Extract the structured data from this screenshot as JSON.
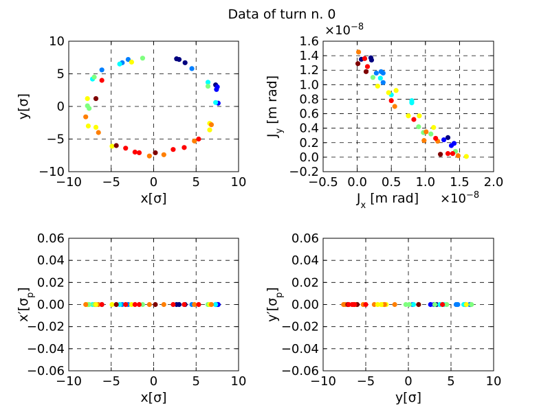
{
  "figure": {
    "title": "Data of turn n.  0"
  },
  "colormap": [
    "#00007f",
    "#0000ff",
    "#007fff",
    "#00ffff",
    "#7fff7f",
    "#ffff00",
    "#ff7f00",
    "#ff0000",
    "#7f0000"
  ],
  "chart_data": [
    {
      "type": "scatter",
      "xlabel": "x[σ]",
      "ylabel": "y[σ]",
      "xlim": [
        -10,
        10
      ],
      "ylim": [
        -10,
        10
      ],
      "xticks": [
        -10,
        -5,
        0,
        5,
        10
      ],
      "yticks": [
        -10,
        -5,
        0,
        5,
        10
      ],
      "grid": true,
      "points": [
        [
          2.7,
          7.3,
          0.02
        ],
        [
          3.0,
          7.2,
          0.06
        ],
        [
          3.7,
          6.7,
          0.04
        ],
        [
          7.3,
          3.3,
          0.03
        ],
        [
          7.4,
          2.6,
          0.08
        ],
        [
          7.6,
          0.5,
          0.1
        ],
        [
          7.5,
          3.0,
          0.14
        ],
        [
          4.5,
          5.8,
          0.22
        ],
        [
          -3.7,
          6.7,
          0.26
        ],
        [
          -6.1,
          5.6,
          0.2
        ],
        [
          -3.0,
          7.2,
          0.3
        ],
        [
          -4.0,
          6.5,
          0.34
        ],
        [
          -7.2,
          4.2,
          0.38
        ],
        [
          7.3,
          0.6,
          0.4
        ],
        [
          6.4,
          3.7,
          0.42
        ],
        [
          -7.8,
          0.1,
          0.46
        ],
        [
          -7.0,
          4.5,
          0.5
        ],
        [
          6.4,
          3.1,
          0.52
        ],
        [
          -1.3,
          7.4,
          0.56
        ],
        [
          -7.8,
          1.2,
          0.58
        ],
        [
          -7.7,
          -3.0,
          0.62
        ],
        [
          6.6,
          -2.6,
          0.64
        ],
        [
          -2.6,
          6.8,
          0.6
        ],
        [
          -4.9,
          -6.1,
          0.66
        ],
        [
          -7.6,
          -0.3,
          0.54
        ],
        [
          -8.0,
          -1.6,
          0.7
        ],
        [
          -6.5,
          -4.0,
          0.72
        ],
        [
          6.6,
          -3.6,
          0.68
        ],
        [
          6.8,
          -2.8,
          0.76
        ],
        [
          -0.5,
          -7.6,
          0.74
        ],
        [
          1.2,
          -7.4,
          0.8
        ],
        [
          -3.3,
          -6.4,
          0.82
        ],
        [
          4.8,
          -5.3,
          0.78
        ],
        [
          5.3,
          -5.0,
          0.86
        ],
        [
          -6.1,
          4.0,
          0.84
        ],
        [
          -1.7,
          -7.1,
          0.88
        ],
        [
          2.3,
          -6.6,
          0.9
        ],
        [
          -4.4,
          -6.0,
          0.94
        ],
        [
          3.6,
          -6.3,
          0.92
        ],
        [
          0.2,
          -7.1,
          0.96
        ],
        [
          -6.8,
          1.2,
          0.98
        ],
        [
          -2.2,
          -7.0,
          0.89
        ],
        [
          -6.8,
          -3.2,
          0.65
        ]
      ]
    },
    {
      "type": "scatter",
      "xlabel": "J_x [m rad]",
      "ylabel": "J_y [m rad]",
      "x_multiplier": "×10^−8",
      "y_multiplier": "×10^−8",
      "xlim": [
        -0.5,
        2.0
      ],
      "ylim": [
        -0.2,
        1.6
      ],
      "xticks": [
        -0.5,
        0.0,
        0.5,
        1.0,
        1.5,
        2.0
      ],
      "yticks": [
        -0.2,
        0.0,
        0.2,
        0.4,
        0.6,
        0.8,
        1.0,
        1.2,
        1.4,
        1.6
      ],
      "grid": true,
      "points": [
        [
          0.2,
          1.37,
          0.02
        ],
        [
          0.21,
          1.34,
          0.06
        ],
        [
          0.06,
          1.35,
          0.04
        ],
        [
          1.33,
          0.27,
          0.03
        ],
        [
          1.42,
          0.19,
          0.08
        ],
        [
          1.38,
          0.16,
          0.1
        ],
        [
          1.27,
          0.24,
          0.14
        ],
        [
          0.38,
          1.16,
          0.22
        ],
        [
          0.28,
          1.16,
          0.26
        ],
        [
          0.35,
          1.18,
          0.2
        ],
        [
          0.38,
          1.03,
          0.3
        ],
        [
          0.34,
          1.09,
          0.34
        ],
        [
          0.5,
          0.86,
          0.38
        ],
        [
          0.8,
          0.75,
          0.4
        ],
        [
          0.8,
          0.78,
          0.42
        ],
        [
          1.08,
          0.32,
          0.46
        ],
        [
          0.97,
          0.34,
          0.5
        ],
        [
          0.9,
          0.42,
          0.52
        ],
        [
          0.23,
          1.1,
          0.56
        ],
        [
          1.6,
          0.01,
          0.58
        ],
        [
          1.12,
          0.41,
          0.62
        ],
        [
          0.91,
          0.57,
          0.64
        ],
        [
          0.3,
          0.98,
          0.6
        ],
        [
          0.57,
          0.92,
          0.66
        ],
        [
          1.44,
          0.08,
          0.54
        ],
        [
          1.48,
          0.02,
          0.7
        ],
        [
          1.18,
          0.22,
          0.72
        ],
        [
          0.75,
          0.57,
          0.68
        ],
        [
          0.02,
          1.45,
          0.76
        ],
        [
          0.98,
          0.23,
          0.74
        ],
        [
          0.55,
          0.7,
          0.8
        ],
        [
          0.83,
          0.52,
          0.82
        ],
        [
          1.01,
          0.35,
          0.78
        ],
        [
          1.4,
          0.05,
          0.86
        ],
        [
          0.11,
          1.36,
          0.84
        ],
        [
          1.33,
          0.05,
          0.88
        ],
        [
          0.5,
          0.78,
          0.9
        ],
        [
          0.13,
          1.18,
          0.94
        ],
        [
          1.15,
          0.26,
          0.92
        ],
        [
          0.01,
          1.29,
          0.96
        ],
        [
          1.22,
          0.04,
          0.98
        ],
        [
          0.15,
          1.25,
          0.89
        ],
        [
          0.46,
          0.89,
          0.65
        ]
      ]
    },
    {
      "type": "scatter",
      "xlabel": "x[σ]",
      "ylabel": "x′[σ_p]",
      "xlim": [
        -10,
        10
      ],
      "ylim": [
        -0.06,
        0.06
      ],
      "xticks": [
        -10,
        -5,
        0,
        5,
        10
      ],
      "yticks": [
        -0.06,
        -0.04,
        -0.02,
        0.0,
        0.02,
        0.04,
        0.06
      ],
      "grid": true,
      "points": [
        [
          2.7,
          0,
          0.02
        ],
        [
          3.0,
          0,
          0.06
        ],
        [
          3.7,
          0,
          0.04
        ],
        [
          7.3,
          0,
          0.03
        ],
        [
          7.4,
          0,
          0.08
        ],
        [
          7.6,
          0,
          0.1
        ],
        [
          7.5,
          0,
          0.14
        ],
        [
          4.5,
          0,
          0.22
        ],
        [
          -3.7,
          0,
          0.26
        ],
        [
          -6.1,
          0,
          0.2
        ],
        [
          -3.0,
          0,
          0.3
        ],
        [
          -4.0,
          0,
          0.34
        ],
        [
          -7.2,
          0,
          0.38
        ],
        [
          7.3,
          0,
          0.4
        ],
        [
          6.4,
          0,
          0.42
        ],
        [
          -7.8,
          0,
          0.46
        ],
        [
          -7.0,
          0,
          0.5
        ],
        [
          6.4,
          0,
          0.52
        ],
        [
          -1.3,
          0,
          0.56
        ],
        [
          -7.8,
          0,
          0.58
        ],
        [
          -7.7,
          0,
          0.62
        ],
        [
          6.6,
          0,
          0.64
        ],
        [
          -2.6,
          0,
          0.6
        ],
        [
          -4.9,
          0,
          0.66
        ],
        [
          -7.6,
          0,
          0.54
        ],
        [
          -8.0,
          0,
          0.7
        ],
        [
          -6.5,
          0,
          0.72
        ],
        [
          6.6,
          0,
          0.68
        ],
        [
          6.8,
          0,
          0.76
        ],
        [
          -0.5,
          0,
          0.74
        ],
        [
          1.2,
          0,
          0.8
        ],
        [
          -3.3,
          0,
          0.82
        ],
        [
          4.8,
          0,
          0.78
        ],
        [
          5.3,
          0,
          0.86
        ],
        [
          -6.1,
          0,
          0.84
        ],
        [
          -1.7,
          0,
          0.88
        ],
        [
          2.3,
          0,
          0.9
        ],
        [
          -4.4,
          0,
          0.94
        ],
        [
          3.6,
          0,
          0.92
        ],
        [
          0.2,
          0,
          0.96
        ],
        [
          -6.8,
          0,
          0.98
        ],
        [
          -2.2,
          0,
          0.89
        ],
        [
          -6.8,
          0,
          0.65
        ]
      ]
    },
    {
      "type": "scatter",
      "xlabel": "y[σ]",
      "ylabel": "y′[σ_p]",
      "xlim": [
        -10,
        10
      ],
      "ylim": [
        -0.06,
        0.06
      ],
      "xticks": [
        -10,
        -5,
        0,
        5,
        10
      ],
      "yticks": [
        -0.06,
        -0.04,
        -0.02,
        0.0,
        0.02,
        0.04,
        0.06
      ],
      "grid": true,
      "points": [
        [
          7.3,
          0,
          0.02
        ],
        [
          7.2,
          0,
          0.06
        ],
        [
          6.7,
          0,
          0.04
        ],
        [
          3.3,
          0,
          0.03
        ],
        [
          2.6,
          0,
          0.08
        ],
        [
          0.5,
          0,
          0.1
        ],
        [
          3.0,
          0,
          0.14
        ],
        [
          5.8,
          0,
          0.22
        ],
        [
          6.7,
          0,
          0.26
        ],
        [
          5.6,
          0,
          0.2
        ],
        [
          7.2,
          0,
          0.3
        ],
        [
          6.5,
          0,
          0.34
        ],
        [
          4.2,
          0,
          0.38
        ],
        [
          0.6,
          0,
          0.4
        ],
        [
          3.7,
          0,
          0.42
        ],
        [
          0.1,
          0,
          0.46
        ],
        [
          4.5,
          0,
          0.5
        ],
        [
          3.1,
          0,
          0.52
        ],
        [
          7.4,
          0,
          0.56
        ],
        [
          1.2,
          0,
          0.58
        ],
        [
          -3.0,
          0,
          0.62
        ],
        [
          -2.6,
          0,
          0.64
        ],
        [
          6.8,
          0,
          0.6
        ],
        [
          -6.1,
          0,
          0.66
        ],
        [
          -0.3,
          0,
          0.54
        ],
        [
          -1.6,
          0,
          0.7
        ],
        [
          -4.0,
          0,
          0.72
        ],
        [
          -3.6,
          0,
          0.68
        ],
        [
          -2.8,
          0,
          0.76
        ],
        [
          -7.6,
          0,
          0.74
        ],
        [
          -7.4,
          0,
          0.8
        ],
        [
          -6.4,
          0,
          0.82
        ],
        [
          -5.3,
          0,
          0.78
        ],
        [
          -5.0,
          0,
          0.86
        ],
        [
          4.0,
          0,
          0.84
        ],
        [
          -7.1,
          0,
          0.88
        ],
        [
          -6.6,
          0,
          0.9
        ],
        [
          -6.0,
          0,
          0.94
        ],
        [
          -6.3,
          0,
          0.92
        ],
        [
          -7.1,
          0,
          0.96
        ],
        [
          1.2,
          0,
          0.98
        ],
        [
          -7.0,
          0,
          0.89
        ],
        [
          -3.2,
          0,
          0.65
        ]
      ]
    }
  ]
}
